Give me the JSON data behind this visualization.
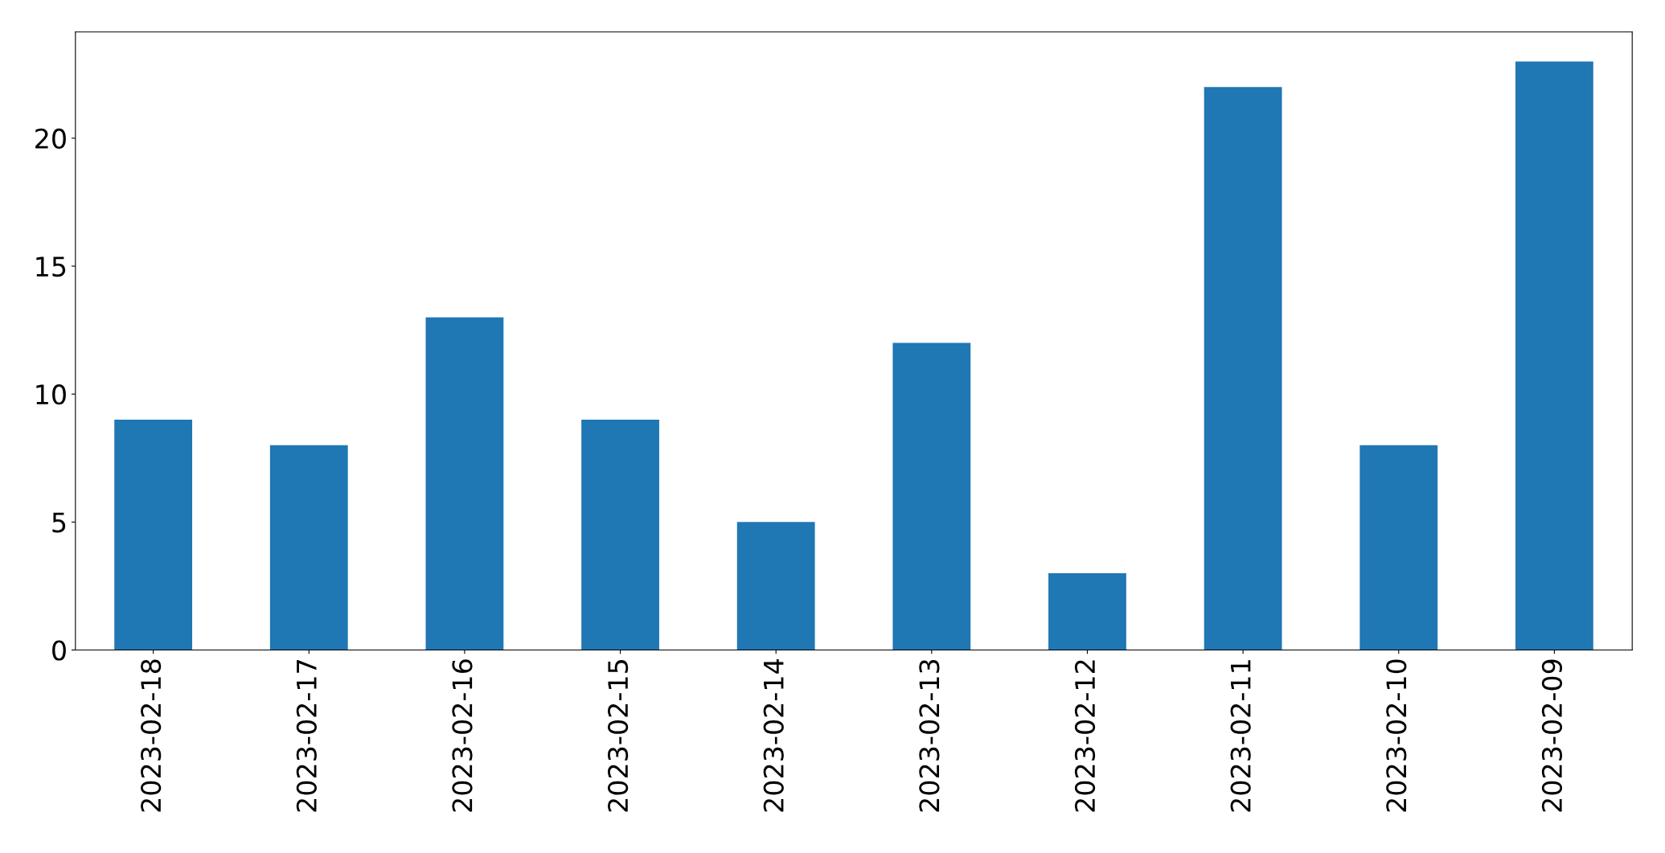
{
  "chart_data": {
    "type": "bar",
    "categories": [
      "2023-02-18",
      "2023-02-17",
      "2023-02-16",
      "2023-02-15",
      "2023-02-14",
      "2023-02-13",
      "2023-02-12",
      "2023-02-11",
      "2023-02-10",
      "2023-02-09"
    ],
    "values": [
      9,
      8,
      13,
      9,
      5,
      12,
      3,
      22,
      8,
      23
    ],
    "color": "#1f77b4",
    "ylim": [
      0,
      24.15
    ],
    "yticks": [
      0,
      5,
      10,
      15,
      20
    ],
    "grid": false
  }
}
